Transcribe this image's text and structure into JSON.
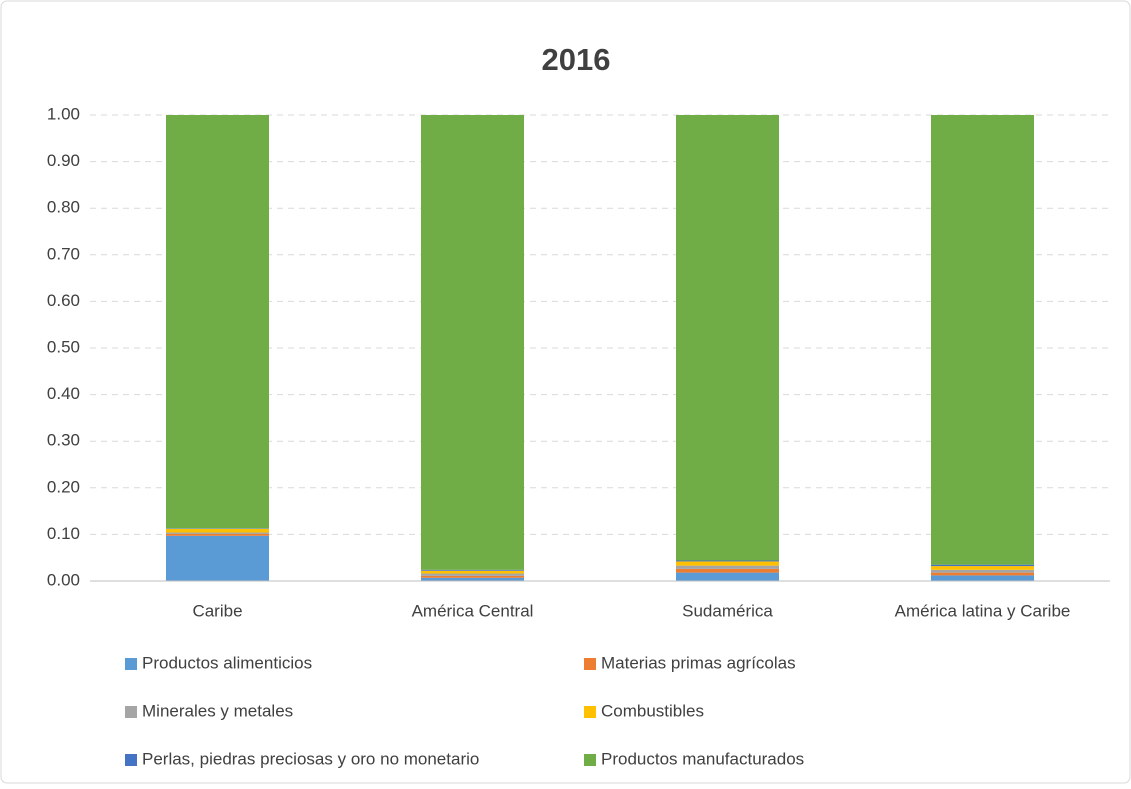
{
  "chart_data": {
    "type": "stacked_bar",
    "title": "2016",
    "categories": [
      "Caribe",
      "América Central",
      "Sudamérica",
      "América latina y Caribe"
    ],
    "series": [
      {
        "name": "Productos alimenticios",
        "color": "#5b9bd5",
        "values": [
          0.097,
          0.007,
          0.018,
          0.012
        ]
      },
      {
        "name": "Materias primas agrícolas",
        "color": "#ed7d31",
        "values": [
          0.004,
          0.004,
          0.008,
          0.006
        ]
      },
      {
        "name": "Minerales y metales",
        "color": "#a5a5a5",
        "values": [
          0.003,
          0.005,
          0.007,
          0.006
        ]
      },
      {
        "name": "Combustibles",
        "color": "#ffc000",
        "values": [
          0.008,
          0.006,
          0.009,
          0.008
        ]
      },
      {
        "name": "Perlas, piedras preciosas y oro no monetario",
        "color": "#4472c4",
        "values": [
          0.001,
          0.002,
          0.002,
          0.003
        ]
      },
      {
        "name": "Productos manufacturados",
        "color": "#70ad47",
        "values": [
          0.887,
          0.976,
          0.956,
          0.965
        ]
      }
    ],
    "ylim": [
      0,
      1
    ],
    "yticks": [
      {
        "value": 0,
        "label": "0.00"
      },
      {
        "value": 0.1,
        "label": "0.10"
      },
      {
        "value": 0.2,
        "label": "0.20"
      },
      {
        "value": 0.3,
        "label": "0.30"
      },
      {
        "value": 0.4,
        "label": "0.40"
      },
      {
        "value": 0.5,
        "label": "0.50"
      },
      {
        "value": 0.6,
        "label": "0.60"
      },
      {
        "value": 0.7,
        "label": "0.70"
      },
      {
        "value": 0.8,
        "label": "0.80"
      },
      {
        "value": 0.9,
        "label": "0.90"
      },
      {
        "value": 1,
        "label": "1.00"
      }
    ],
    "grid": true,
    "legend": "bottom"
  }
}
